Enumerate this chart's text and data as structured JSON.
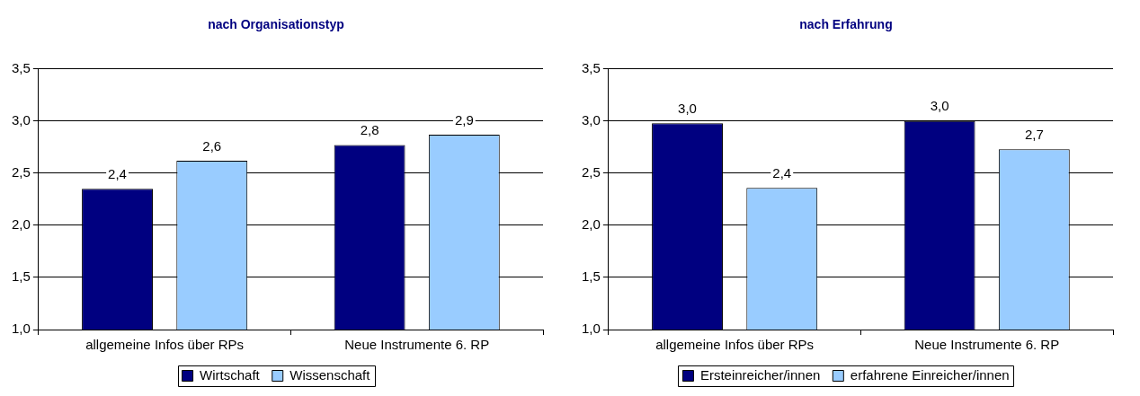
{
  "chart_data": [
    {
      "type": "bar",
      "title": "nach Organisationstyp",
      "categories": [
        "allgemeine Infos über RPs",
        "Neue Instrumente 6. RP"
      ],
      "series": [
        {
          "name": "Wirtschaft",
          "color": "#000080",
          "values": [
            2.35,
            2.77
          ],
          "value_labels": [
            "2,4",
            "2,8"
          ]
        },
        {
          "name": "Wissenschaft",
          "color": "#99ccff",
          "values": [
            2.62,
            2.87
          ],
          "value_labels": [
            "2,6",
            "2,9"
          ]
        }
      ],
      "ylim": [
        1,
        3.5
      ],
      "yticks": [
        {
          "value": 1,
          "label": "1,0"
        },
        {
          "value": 1.5,
          "label": "1,5"
        },
        {
          "value": 2,
          "label": "2,0"
        },
        {
          "value": 2.5,
          "label": "2,5"
        },
        {
          "value": 3,
          "label": "3,0"
        },
        {
          "value": 3.5,
          "label": "3,5"
        }
      ],
      "grid": "y",
      "legend": "bottom"
    },
    {
      "type": "bar",
      "title": "nach Erfahrung",
      "categories": [
        "allgemeine Infos über RPs",
        "Neue Instrumente 6. RP"
      ],
      "series": [
        {
          "name": "Ersteinreicher/innen",
          "color": "#000080",
          "values": [
            2.98,
            3.0
          ],
          "value_labels": [
            "3,0",
            "3,0"
          ]
        },
        {
          "name": "erfahrene Einreicher/innen",
          "color": "#99ccff",
          "values": [
            2.36,
            2.73
          ],
          "value_labels": [
            "2,4",
            "2,7"
          ]
        }
      ],
      "ylim": [
        1,
        3.5
      ],
      "yticks": [
        {
          "value": 1,
          "label": "1,0"
        },
        {
          "value": 1.5,
          "label": "1,5"
        },
        {
          "value": 2,
          "label": "2,0"
        },
        {
          "value": 2.5,
          "label": "2,5"
        },
        {
          "value": 3,
          "label": "3,0"
        },
        {
          "value": 3.5,
          "label": "3,5"
        }
      ],
      "grid": "y",
      "legend": "bottom"
    }
  ]
}
